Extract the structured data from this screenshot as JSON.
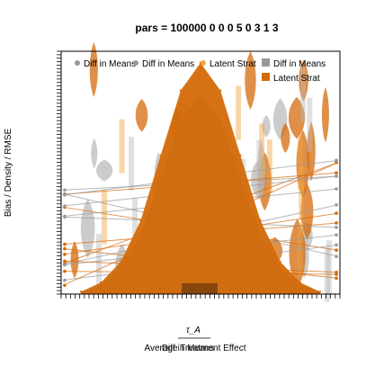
{
  "chart_data": {
    "type": "area",
    "title": "pars = 100000 0 0 0 5 0 3 1 3",
    "xlabel": "Average Treatment Effect",
    "xlabel_overlay": "Diff in Means",
    "x_symbol": "τ_A",
    "ylabel": "Bias / Density / RMSE",
    "legend": {
      "position": "top-right",
      "entries": [
        {
          "label": "Diff in Means",
          "color": "#999999",
          "marker": "circle"
        },
        {
          "label": "Diff in Means",
          "color": "#999999",
          "marker": "circle"
        },
        {
          "label": "Latent Strat",
          "color": "#f2a541",
          "marker": "circle"
        },
        {
          "label": "Diff in Means",
          "color": "#999999",
          "marker": "square"
        },
        {
          "label": "Latent Strat",
          "color": "#d46a0a",
          "marker": "square"
        }
      ]
    },
    "series": [
      {
        "name": "Diff in Means",
        "color": "#999999",
        "x": [
          -3,
          -2.5,
          -2,
          -1.5,
          -1,
          -0.5,
          0,
          0.5,
          1,
          1.5,
          2,
          2.5,
          3
        ],
        "y": [
          0.01,
          0.04,
          0.11,
          0.26,
          0.5,
          0.75,
          0.86,
          0.75,
          0.5,
          0.26,
          0.11,
          0.04,
          0.01
        ]
      },
      {
        "name": "Latent Strat",
        "color": "#d46a0a",
        "x": [
          -3,
          -2.5,
          -2,
          -1.5,
          -1,
          -0.5,
          0,
          0.5,
          1,
          1.5,
          2,
          2.5,
          3
        ],
        "y": [
          0.01,
          0.05,
          0.14,
          0.32,
          0.6,
          0.88,
          1.0,
          0.88,
          0.6,
          0.32,
          0.14,
          0.05,
          0.01
        ]
      }
    ],
    "xlim": [
      -3.5,
      3.5
    ],
    "ylim": [
      0,
      1.05
    ],
    "grid": false,
    "colors": {
      "dim": "#999999",
      "dim_light": "#bbbbbb",
      "latent": "#d46a0a",
      "latent_light": "#f2a541"
    }
  }
}
